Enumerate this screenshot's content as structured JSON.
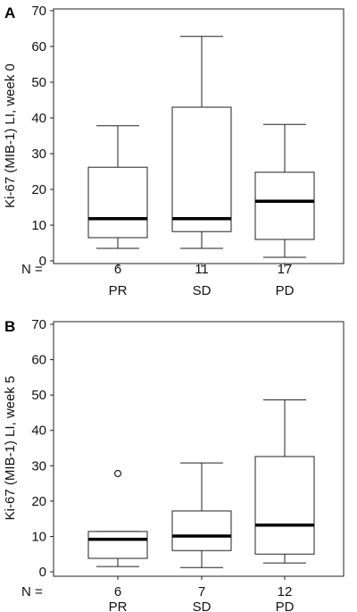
{
  "chart_data": [
    {
      "type": "box",
      "panel_label": "A",
      "ylabel": "Ki-67 (MIB-1) LI, week 0",
      "ylim": [
        0,
        70
      ],
      "yticks": [
        "0",
        "10",
        "20",
        "30",
        "40",
        "50",
        "60",
        "70"
      ],
      "n_prefix": "N =",
      "grid": false,
      "groups": [
        {
          "label": "PR",
          "n": "6",
          "min": 3.5,
          "q1": 6.5,
          "median": 11.8,
          "q3": 26.2,
          "max": 37.8,
          "outliers": []
        },
        {
          "label": "SD",
          "n": "11",
          "min": 3.5,
          "q1": 8.2,
          "median": 11.8,
          "q3": 43.0,
          "max": 62.8,
          "outliers": []
        },
        {
          "label": "PD",
          "n": "17",
          "min": 1.0,
          "q1": 6.0,
          "median": 16.7,
          "q3": 24.8,
          "max": 38.2,
          "outliers": []
        }
      ]
    },
    {
      "type": "box",
      "panel_label": "B",
      "ylabel": "Ki-67 (MIB-1) LI, week 5",
      "ylim": [
        0,
        70
      ],
      "yticks": [
        "0",
        "10",
        "20",
        "30",
        "40",
        "50",
        "60",
        "70"
      ],
      "n_prefix": "N =",
      "grid": false,
      "groups": [
        {
          "label": "PR",
          "n": "6",
          "min": 1.5,
          "q1": 3.8,
          "median": 9.2,
          "q3": 11.4,
          "max": 11.4,
          "outliers": [
            27.8
          ]
        },
        {
          "label": "SD",
          "n": "7",
          "min": 1.2,
          "q1": 6.0,
          "median": 10.1,
          "q3": 17.2,
          "max": 30.8,
          "outliers": []
        },
        {
          "label": "PD",
          "n": "12",
          "min": 2.5,
          "q1": 5.0,
          "median": 13.2,
          "q3": 32.6,
          "max": 48.6,
          "outliers": []
        }
      ]
    }
  ]
}
